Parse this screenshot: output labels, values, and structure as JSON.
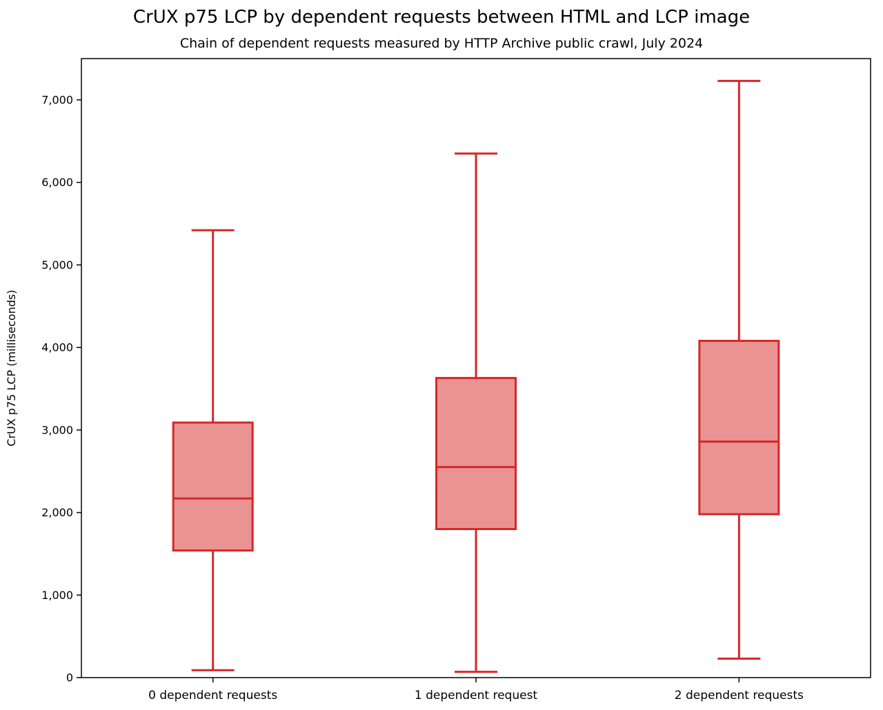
{
  "chart_data": {
    "type": "boxplot",
    "title": "CrUX p75 LCP by dependent requests between HTML and LCP image",
    "subtitle": "Chain of dependent requests measured by HTTP Archive public crawl, July 2024",
    "xlabel": "",
    "ylabel": "CrUX p75 LCP (milliseconds)",
    "ylim": [
      0,
      7500
    ],
    "grid": false,
    "legend_position": "none",
    "yticks": [
      {
        "value": 0,
        "label": "0"
      },
      {
        "value": 1000,
        "label": "1,000"
      },
      {
        "value": 2000,
        "label": "2,000"
      },
      {
        "value": 3000,
        "label": "3,000"
      },
      {
        "value": 4000,
        "label": "4,000"
      },
      {
        "value": 5000,
        "label": "5,000"
      },
      {
        "value": 6000,
        "label": "6,000"
      },
      {
        "value": 7000,
        "label": "7,000"
      }
    ],
    "categories": [
      "0 dependent requests",
      "1 dependent request",
      "2 dependent requests"
    ],
    "boxes": [
      {
        "category": "0 dependent requests",
        "whisker_low": 90,
        "q1": 1540,
        "median": 2170,
        "q3": 3090,
        "whisker_high": 5420
      },
      {
        "category": "1 dependent request",
        "whisker_low": 70,
        "q1": 1800,
        "median": 2550,
        "q3": 3630,
        "whisker_high": 6350
      },
      {
        "category": "2 dependent requests",
        "whisker_low": 230,
        "q1": 1980,
        "median": 2860,
        "q3": 4080,
        "whisker_high": 7230
      }
    ],
    "colors": {
      "box_edge": "#d62728",
      "box_fill": "#ea9393",
      "axis": "#000000",
      "background": "#ffffff"
    }
  }
}
